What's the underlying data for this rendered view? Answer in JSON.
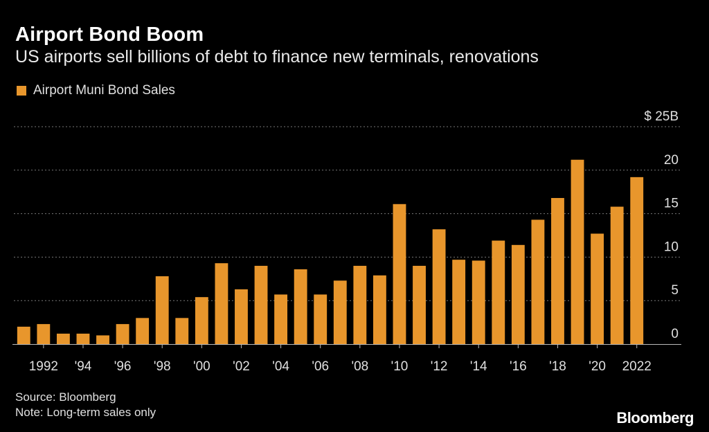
{
  "header": {
    "title": "Airport Bond Boom",
    "subtitle": "US airports sell billions of debt to finance new terminals, renovations"
  },
  "legend": {
    "label": "Airport Muni Bond Sales"
  },
  "footer": {
    "source": "Source: Bloomberg",
    "note": "Note: Long-term sales only",
    "brand": "Bloomberg"
  },
  "colors": {
    "bar": "#E8962C",
    "grid": "#7a7a7a",
    "axis": "#bbbbbb",
    "background": "#000000"
  },
  "chart_data": {
    "type": "bar",
    "title": "Airport Bond Boom",
    "subtitle": "US airports sell billions of debt to finance new terminals, renovations",
    "xlabel": "",
    "ylabel": "",
    "unit": "$B",
    "ylim": [
      0,
      25
    ],
    "yticks": [
      0,
      5,
      10,
      15,
      20,
      25
    ],
    "ytick_labels": [
      "0",
      "5",
      "10",
      "15",
      "20",
      "$ 25B"
    ],
    "grid": true,
    "legend_position": "top-left",
    "series": [
      {
        "name": "Airport Muni Bond Sales",
        "values": [
          2.0,
          2.3,
          1.2,
          1.2,
          1.0,
          2.3,
          3.0,
          7.8,
          3.0,
          5.4,
          9.3,
          6.3,
          9.0,
          5.7,
          8.6,
          5.7,
          7.3,
          9.0,
          7.9,
          16.1,
          9.0,
          13.2,
          9.7,
          9.6,
          11.9,
          11.4,
          14.3,
          16.8,
          21.2,
          12.7,
          15.8,
          19.2
        ]
      }
    ],
    "categories": [
      "1991",
      "1992",
      "1993",
      "1994",
      "1995",
      "1996",
      "1997",
      "1998",
      "1999",
      "2000",
      "2001",
      "2002",
      "2003",
      "2004",
      "2005",
      "2006",
      "2007",
      "2008",
      "2009",
      "2010",
      "2011",
      "2012",
      "2013",
      "2014",
      "2015",
      "2016",
      "2017",
      "2018",
      "2019",
      "2020",
      "2021",
      "2022"
    ],
    "xtick_labels": [
      {
        "category": "1992",
        "label": "1992"
      },
      {
        "category": "1994",
        "label": "'94"
      },
      {
        "category": "1996",
        "label": "'96"
      },
      {
        "category": "1998",
        "label": "'98"
      },
      {
        "category": "2000",
        "label": "'00"
      },
      {
        "category": "2002",
        "label": "'02"
      },
      {
        "category": "2004",
        "label": "'04"
      },
      {
        "category": "2006",
        "label": "'06"
      },
      {
        "category": "2008",
        "label": "'08"
      },
      {
        "category": "2010",
        "label": "'10"
      },
      {
        "category": "2012",
        "label": "'12"
      },
      {
        "category": "2014",
        "label": "'14"
      },
      {
        "category": "2016",
        "label": "'16"
      },
      {
        "category": "2018",
        "label": "'18"
      },
      {
        "category": "2020",
        "label": "'20"
      },
      {
        "category": "2022",
        "label": "2022"
      }
    ]
  }
}
